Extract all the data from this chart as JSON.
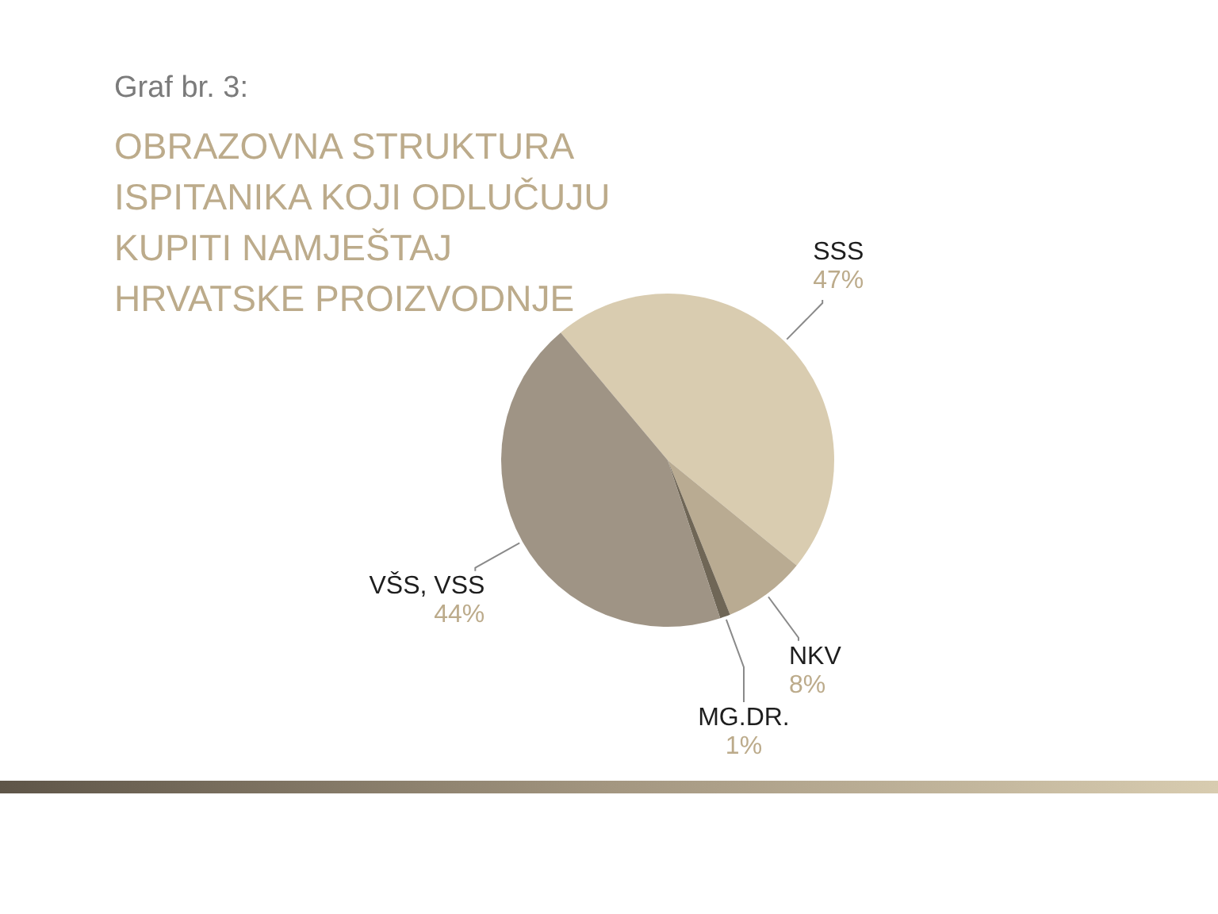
{
  "chart_data": {
    "type": "pie",
    "title": "Graf br. 3:",
    "subtitle": "OBRAZOVNA STRUKTURA ISPITANIKA KOJI ODLUČUJU KUPITI NAMJEŠTAJ HRVATSKE PROIZVODNJE",
    "categories": [
      "SSS",
      "NKV",
      "MG.DR.",
      "VŠS, VSS"
    ],
    "values": [
      47,
      8,
      1,
      44
    ],
    "colors": [
      "#d9ccb0",
      "#b9ab92",
      "#6f6656",
      "#9f9485"
    ],
    "value_labels": [
      "47%",
      "8%",
      "1%",
      "44%"
    ],
    "legend": false
  }
}
